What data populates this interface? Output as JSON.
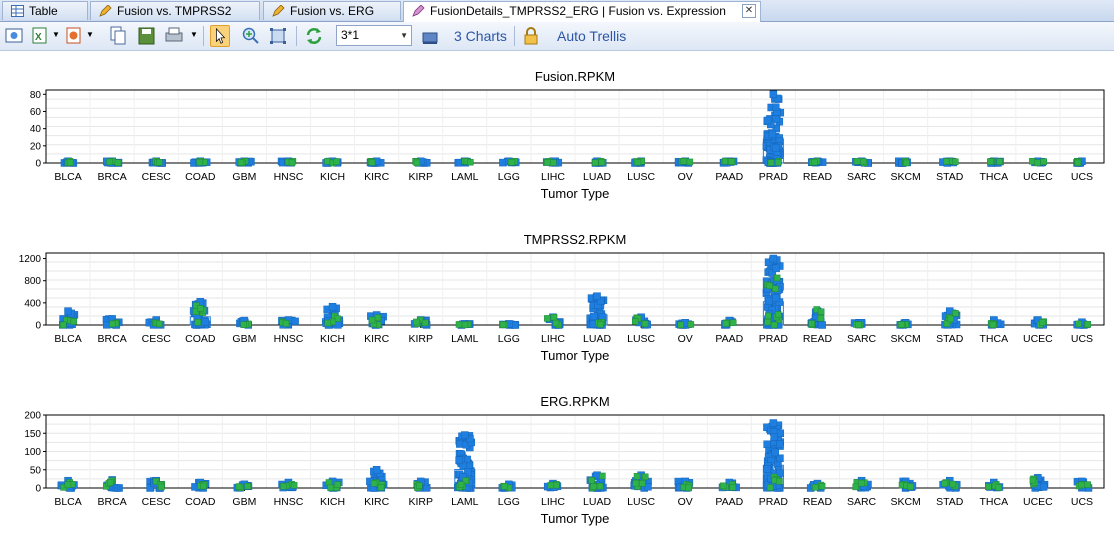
{
  "tabs": [
    {
      "label": "Table",
      "active": false
    },
    {
      "label": "Fusion vs. TMPRSS2",
      "active": false
    },
    {
      "label": "Fusion vs. ERG",
      "active": false
    },
    {
      "label": "FusionDetails_TMPRSS2_ERG | Fusion vs. Expression",
      "active": true
    }
  ],
  "tab_close": "✕",
  "toolbar": {
    "layout_value": "3*1",
    "charts_label": "3 Charts",
    "trellis_label": "Auto Trellis",
    "icons": [
      "screenshot-icon",
      "export-excel-icon",
      "export-ppt-icon",
      "copy-icon",
      "save-icon",
      "print-icon",
      "pointer-icon",
      "zoom-in-icon",
      "fit-icon",
      "refresh-icon",
      "chart-icon",
      "lock-icon"
    ]
  },
  "colors": {
    "blue": "#1f7fe0",
    "green": "#2fb24a",
    "grid": "#e6e6e6"
  },
  "chart_data": [
    {
      "type": "scatter",
      "title": "Fusion.RPKM",
      "xlabel": "Tumor Type",
      "ylim": [
        0,
        85
      ],
      "yticks": [
        0,
        20,
        40,
        60,
        80
      ],
      "categories": [
        "BLCA",
        "BRCA",
        "CESC",
        "COAD",
        "GBM",
        "HNSC",
        "KICH",
        "KIRC",
        "KIRP",
        "LAML",
        "LGG",
        "LIHC",
        "LUAD",
        "LUSC",
        "OV",
        "PAAD",
        "PRAD",
        "READ",
        "SARC",
        "SKCM",
        "STAD",
        "THCA",
        "UCEC",
        "UCS"
      ],
      "max": [
        2,
        2,
        2,
        2,
        2,
        2,
        2,
        2,
        2,
        2,
        2,
        2,
        2,
        2,
        2,
        2,
        80,
        2,
        2,
        2,
        2,
        2,
        2,
        2
      ],
      "green": [
        2,
        2,
        2,
        2,
        2,
        2,
        2,
        2,
        2,
        2,
        2,
        2,
        2,
        2,
        2,
        2,
        2,
        2,
        2,
        2,
        2,
        2,
        2,
        2
      ]
    },
    {
      "type": "scatter",
      "title": "TMPRSS2.RPKM",
      "xlabel": "Tumor Type",
      "ylim": [
        0,
        1300
      ],
      "yticks": [
        0,
        400,
        800,
        1200
      ],
      "categories": [
        "BLCA",
        "BRCA",
        "CESC",
        "COAD",
        "GBM",
        "HNSC",
        "KICH",
        "KIRC",
        "KIRP",
        "LAML",
        "LGG",
        "LIHC",
        "LUAD",
        "LUSC",
        "OV",
        "PAAD",
        "PRAD",
        "READ",
        "SARC",
        "SKCM",
        "STAD",
        "THCA",
        "UCEC",
        "UCS"
      ],
      "max": [
        250,
        110,
        90,
        420,
        80,
        90,
        330,
        180,
        90,
        20,
        20,
        140,
        520,
        140,
        40,
        80,
        1200,
        250,
        40,
        40,
        250,
        90,
        90,
        50
      ],
      "green": [
        90,
        40,
        40,
        350,
        20,
        60,
        160,
        130,
        90,
        10,
        10,
        140,
        50,
        130,
        10,
        40,
        850,
        280,
        10,
        10,
        210,
        30,
        60,
        20
      ]
    },
    {
      "type": "scatter",
      "title": "ERG.RPKM",
      "xlabel": "Tumor Type",
      "ylim": [
        0,
        200
      ],
      "yticks": [
        0,
        50,
        100,
        150,
        200
      ],
      "categories": [
        "BLCA",
        "BRCA",
        "CESC",
        "COAD",
        "GBM",
        "HNSC",
        "KICH",
        "KIRC",
        "KIRP",
        "LAML",
        "LGG",
        "LIHC",
        "LUAD",
        "LUSC",
        "OV",
        "PAAD",
        "PRAD",
        "READ",
        "SARC",
        "SKCM",
        "STAD",
        "THCA",
        "UCEC",
        "UCS"
      ],
      "max": [
        20,
        22,
        20,
        15,
        10,
        15,
        18,
        50,
        18,
        145,
        10,
        12,
        35,
        35,
        18,
        15,
        178,
        12,
        20,
        18,
        20,
        15,
        28,
        18
      ],
      "green": [
        15,
        20,
        18,
        10,
        5,
        10,
        15,
        15,
        10,
        20,
        5,
        10,
        33,
        32,
        10,
        10,
        30,
        8,
        15,
        10,
        15,
        10,
        25,
        10
      ]
    }
  ]
}
